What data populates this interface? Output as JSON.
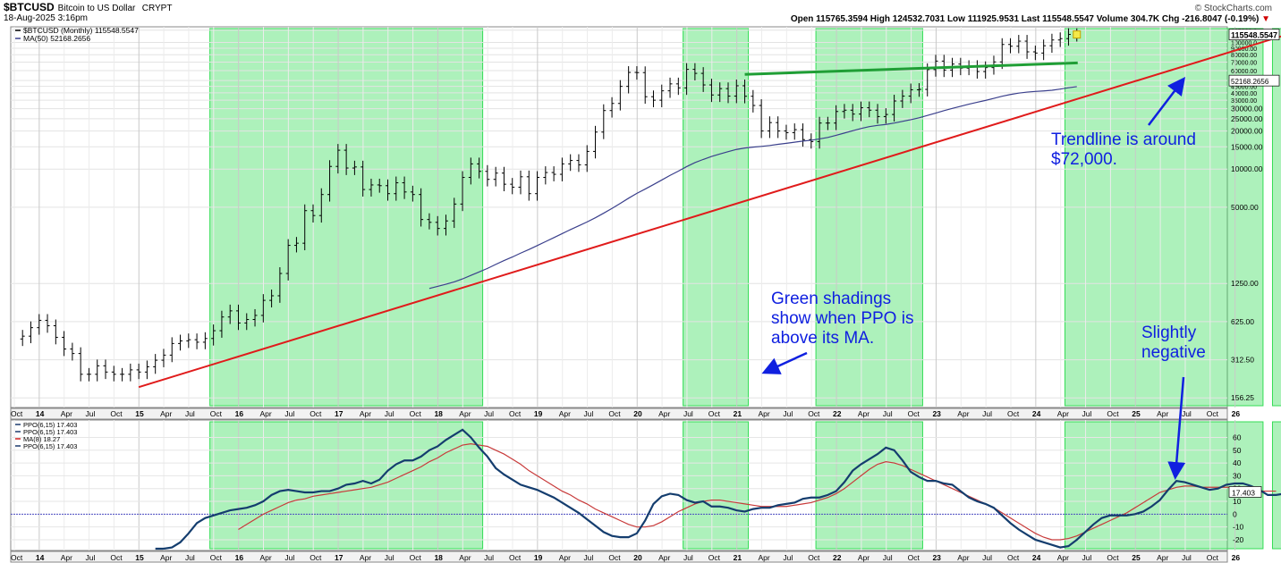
{
  "header": {
    "symbol": "$BTCUSD",
    "name": "Bitcoin to US Dollar",
    "exchange": "CRYPT",
    "date": "18-Aug-2025 3:16pm",
    "brand": "© StockCharts.com",
    "quote": "Open 115765.3594  High 124532.7031  Low 111925.9531  Last 115548.5547  Volume 304.7K  Chg -216.8047 (-0.19%)",
    "quote_arrow": "▼"
  },
  "main_legend": [
    {
      "label": "$BTCUSD (Monthly) 115548.5547",
      "color": "#000000",
      "icon": "ohlc-bar-icon"
    },
    {
      "label": "MA(50) 52168.2656",
      "color": "#3a3f8c",
      "icon": "line-swatch-icon"
    }
  ],
  "ppo_legend": [
    {
      "label": "PPO(6,15) 17.403",
      "color": "#1c3a6e"
    },
    {
      "label": "PPO(6,15) 17.403",
      "color": "#1c3a6e"
    },
    {
      "label": "MA(8) 18.27",
      "color": "#d02020"
    },
    {
      "label": "PPO(6,15) 17.403",
      "color": "#1c3a6e"
    }
  ],
  "annotations": [
    {
      "text": "Trendline is around",
      "text2": "$72,000."
    },
    {
      "text": "Green shadings",
      "text2": "show when PPO is",
      "text3": "above its MA."
    },
    {
      "text": "Slightly",
      "text2": "negative"
    }
  ],
  "last_value_tags": {
    "price": "115548.5547",
    "ma": "52168.2656",
    "ppo": "17.403"
  },
  "colors": {
    "shade": "#33dd55",
    "price": "#000000",
    "ma50": "#3a3f8c",
    "trend": "#e01b1b",
    "resistance": "#1f9e35",
    "ppo": "#143d6e",
    "ppo_ma": "#c83a3a",
    "annotation": "#1020e0"
  },
  "chart_data": [
    {
      "type": "ohlc",
      "scale": "log",
      "title": "$BTCUSD (Monthly)",
      "y_tick_labels": [
        "125000.0",
        "100000.0",
        "90000.00",
        "80000.00",
        "70000.00",
        "60000.00",
        "50000.00",
        "45000.00",
        "40000.00",
        "35000.00",
        "30000.00",
        "25000.00",
        "20000.00",
        "15000.00",
        "10000.00",
        "5000.00",
        "1250.00",
        "625.00",
        "312.50",
        "156.25"
      ],
      "y_tick_values": [
        125000,
        100000,
        90000,
        80000,
        70000,
        60000,
        50000,
        45000,
        40000,
        35000,
        30000,
        25000,
        20000,
        15000,
        10000,
        5000,
        1250,
        625,
        312.5,
        156.25
      ],
      "x_tick_labels": [
        "Oct",
        "14",
        "Apr",
        "Jul",
        "Oct",
        "15",
        "Apr",
        "Jul",
        "Oct",
        "16",
        "Apr",
        "Jul",
        "Oct",
        "17",
        "Apr",
        "Jul",
        "Oct",
        "18",
        "Apr",
        "Jul",
        "Oct",
        "19",
        "Apr",
        "Jul",
        "Oct",
        "20",
        "Apr",
        "Jul",
        "Oct",
        "21",
        "Apr",
        "Jul",
        "Oct",
        "22",
        "Apr",
        "Jul",
        "Oct",
        "23",
        "Apr",
        "Jul",
        "Oct",
        "24",
        "Apr",
        "Jul",
        "Oct",
        "25",
        "Apr",
        "Jul",
        "Oct",
        "26"
      ],
      "close": [
        480,
        560,
        640,
        580,
        470,
        380,
        350,
        240,
        240,
        280,
        250,
        240,
        240,
        260,
        250,
        275,
        310,
        340,
        420,
        440,
        450,
        430,
        460,
        530,
        680,
        760,
        610,
        650,
        700,
        920,
        1000,
        1500,
        2500,
        2600,
        4700,
        4300,
        6300,
        10500,
        14100,
        10200,
        10400,
        6900,
        7500,
        7400,
        6400,
        7800,
        6600,
        6300,
        4000,
        3800,
        3400,
        3900,
        5300,
        8600,
        11000,
        9600,
        8300,
        9300,
        7600,
        7200,
        8700,
        6400,
        8600,
        9400,
        9100,
        11000,
        11700,
        10800,
        13800,
        19600,
        29000,
        33000,
        45000,
        58000,
        57800,
        37300,
        35000,
        41500,
        47100,
        43800,
        61300,
        57000,
        46200,
        38500,
        43200,
        37700,
        45500,
        37600,
        31800,
        20000,
        23300,
        20000,
        19400,
        20500,
        17100,
        16500,
        23100,
        23100,
        28500,
        29200,
        27200,
        30500,
        29200,
        26000,
        27000,
        34500,
        37700,
        42300,
        42600,
        61100,
        71300,
        60600,
        67500,
        62700,
        64600,
        58900,
        63300,
        70200,
        96400,
        93400,
        102400,
        84300,
        82500,
        94200,
        104600,
        107200,
        115700,
        115548
      ],
      "ma50_end": 52168.2656,
      "trendline_end": 72000,
      "resistance_level": 69000
    },
    {
      "type": "line",
      "title": "PPO(6,15)",
      "y_tick_labels": [
        "60",
        "50",
        "40",
        "30",
        "20",
        "10",
        "0",
        "-10",
        "-20"
      ],
      "y_tick_values": [
        60,
        50,
        40,
        30,
        20,
        10,
        0,
        -10,
        -20
      ],
      "series": [
        {
          "name": "PPO(6,15)",
          "last": 17.403,
          "values": [
            -27,
            -27,
            -26,
            -22,
            -15,
            -7,
            -3,
            -1,
            1,
            3,
            4,
            5,
            7,
            10,
            15,
            18,
            19,
            18,
            17,
            17,
            18,
            18,
            20,
            23,
            24,
            26,
            24,
            27,
            34,
            39,
            42,
            42,
            45,
            50,
            53,
            58,
            62,
            66,
            60,
            52,
            45,
            36,
            31,
            27,
            23,
            21,
            19,
            16,
            13,
            9,
            5,
            1,
            -4,
            -9,
            -14,
            -17,
            -18,
            -18,
            -15,
            -5,
            8,
            14,
            16,
            15,
            11,
            9,
            10,
            6,
            6,
            5,
            3,
            2,
            4,
            5,
            5,
            7,
            8,
            9,
            12,
            13,
            13,
            15,
            18,
            25,
            34,
            39,
            43,
            47,
            52,
            50,
            42,
            33,
            29,
            26,
            26,
            24,
            23,
            18,
            13,
            10,
            8,
            5,
            -1,
            -7,
            -12,
            -16,
            -20,
            -22,
            -24,
            -26,
            -25,
            -20,
            -14,
            -8,
            -3,
            -1,
            -1,
            -1,
            0,
            2,
            6,
            11,
            19,
            26,
            25,
            23,
            21,
            19,
            20,
            23,
            24,
            24,
            22,
            19,
            15,
            15,
            16,
            16,
            17
          ]
        },
        {
          "name": "MA(8)",
          "last": 18.27,
          "values": [
            null,
            null,
            null,
            null,
            null,
            null,
            null,
            null,
            null,
            null,
            -12,
            -8,
            -4,
            0,
            3,
            6,
            9,
            11,
            12,
            14,
            15,
            16,
            17,
            18,
            19,
            20,
            21,
            23,
            25,
            28,
            31,
            34,
            37,
            41,
            44,
            48,
            51,
            54,
            55,
            54,
            53,
            50,
            47,
            43,
            39,
            34,
            30,
            26,
            22,
            18,
            15,
            11,
            8,
            4,
            1,
            -2,
            -5,
            -8,
            -10,
            -10,
            -9,
            -6,
            -2,
            2,
            5,
            8,
            10,
            11,
            11,
            10,
            9,
            8,
            7,
            6,
            6,
            6,
            6,
            7,
            8,
            9,
            11,
            13,
            16,
            20,
            25,
            30,
            35,
            39,
            41,
            40,
            38,
            35,
            32,
            29,
            26,
            23,
            20,
            17,
            14,
            11,
            8,
            5,
            1,
            -3,
            -7,
            -11,
            -15,
            -18,
            -20,
            -20,
            -19,
            -17,
            -14,
            -11,
            -8,
            -5,
            -2,
            1,
            5,
            9,
            13,
            17,
            19,
            21,
            22,
            22,
            21,
            21,
            21,
            21,
            21,
            20,
            19,
            18,
            18,
            18
          ]
        }
      ]
    }
  ]
}
